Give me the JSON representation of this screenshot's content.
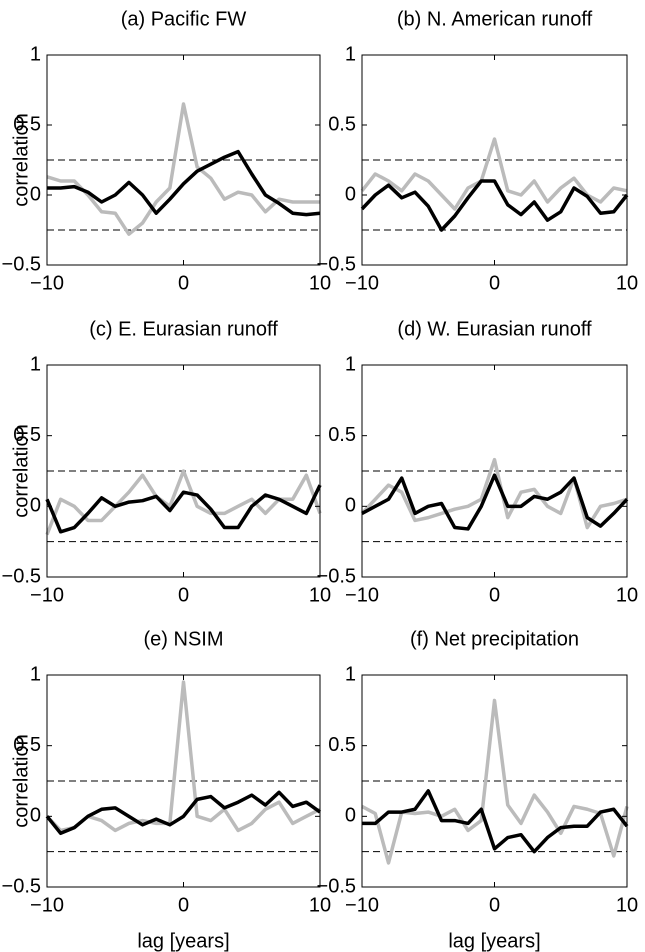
{
  "chart_data": [
    {
      "type": "line",
      "title": "(a) Pacific FW",
      "ylabel": "correlation",
      "x": [
        -10,
        -9,
        -8,
        -7,
        -6,
        -5,
        -4,
        -3,
        -2,
        -1,
        0,
        1,
        2,
        3,
        4,
        5,
        6,
        7,
        8,
        9,
        10
      ],
      "series": [
        {
          "color": "#bbbbbb",
          "values": [
            0.13,
            0.1,
            0.1,
            0.0,
            -0.12,
            -0.13,
            -0.28,
            -0.2,
            -0.05,
            0.05,
            0.65,
            0.2,
            0.12,
            -0.03,
            0.02,
            0.0,
            -0.12,
            -0.03,
            -0.05,
            -0.05,
            -0.05
          ]
        },
        {
          "color": "#000000",
          "values": [
            0.05,
            0.05,
            0.06,
            0.02,
            -0.05,
            0.0,
            0.09,
            0.0,
            -0.13,
            -0.03,
            0.08,
            0.17,
            0.22,
            0.27,
            0.31,
            0.15,
            0.0,
            -0.06,
            -0.13,
            -0.14,
            -0.13
          ]
        }
      ],
      "reference_lines": [
        0.25,
        -0.25
      ],
      "xlim": [
        -10,
        10
      ],
      "xticks": [
        {
          "value": -10,
          "label": "−10"
        },
        0,
        10
      ],
      "ylim": [
        -0.5,
        1
      ],
      "yticks": [
        {
          "value": -0.5,
          "label": "−0.5"
        },
        0,
        0.5,
        1
      ]
    },
    {
      "type": "line",
      "title": "(b) N. American runoff",
      "x": [
        -10,
        -9,
        -8,
        -7,
        -6,
        -5,
        -4,
        -3,
        -2,
        -1,
        0,
        1,
        2,
        3,
        4,
        5,
        6,
        7,
        8,
        9,
        10
      ],
      "series": [
        {
          "color": "#bbbbbb",
          "values": [
            0.03,
            0.15,
            0.1,
            0.03,
            0.15,
            0.1,
            0.0,
            -0.1,
            0.05,
            0.1,
            0.4,
            0.03,
            0.0,
            0.1,
            -0.05,
            0.05,
            0.12,
            0.0,
            -0.05,
            0.05,
            0.03
          ]
        },
        {
          "color": "#000000",
          "values": [
            -0.1,
            0.0,
            0.07,
            -0.02,
            0.02,
            -0.08,
            -0.25,
            -0.15,
            -0.02,
            0.1,
            0.1,
            -0.07,
            -0.14,
            -0.05,
            -0.18,
            -0.12,
            0.05,
            -0.01,
            -0.13,
            -0.12,
            0.0
          ]
        }
      ],
      "reference_lines": [
        0.25,
        -0.25
      ],
      "xlim": [
        -10,
        10
      ],
      "xticks": [
        {
          "value": -10,
          "label": "−10"
        },
        0,
        10
      ],
      "ylim": [
        -0.5,
        1
      ],
      "yticks": [
        {
          "value": -0.5,
          "label": "−0.5"
        },
        0,
        0.5,
        1
      ]
    },
    {
      "type": "line",
      "title": "(c) E. Eurasian runoff",
      "ylabel": "correlation",
      "x": [
        -10,
        -9,
        -8,
        -7,
        -6,
        -5,
        -4,
        -3,
        -2,
        -1,
        0,
        1,
        2,
        3,
        4,
        5,
        6,
        7,
        8,
        9,
        10
      ],
      "series": [
        {
          "color": "#bbbbbb",
          "values": [
            -0.2,
            0.05,
            0.0,
            -0.1,
            -0.1,
            0.0,
            0.1,
            0.22,
            0.07,
            0.0,
            0.25,
            0.0,
            -0.05,
            -0.05,
            0.0,
            0.05,
            -0.05,
            0.05,
            0.05,
            0.22,
            -0.05
          ]
        },
        {
          "color": "#000000",
          "values": [
            0.05,
            -0.18,
            -0.15,
            -0.05,
            0.06,
            0.0,
            0.03,
            0.04,
            0.07,
            -0.03,
            0.1,
            0.08,
            -0.02,
            -0.15,
            -0.15,
            0.0,
            0.08,
            0.05,
            0.0,
            -0.05,
            0.15
          ]
        }
      ],
      "reference_lines": [
        0.25,
        -0.25
      ],
      "xlim": [
        -10,
        10
      ],
      "xticks": [
        {
          "value": -10,
          "label": "−10"
        },
        0,
        10
      ],
      "ylim": [
        -0.5,
        1
      ],
      "yticks": [
        {
          "value": -0.5,
          "label": "−0.5"
        },
        0,
        0.5,
        1
      ]
    },
    {
      "type": "line",
      "title": "(d) W. Eurasian runoff",
      "x": [
        -10,
        -9,
        -8,
        -7,
        -6,
        -5,
        -4,
        -3,
        -2,
        -1,
        0,
        1,
        2,
        3,
        4,
        5,
        6,
        7,
        8,
        9,
        10
      ],
      "series": [
        {
          "color": "#bbbbbb",
          "values": [
            -0.05,
            0.05,
            0.15,
            0.1,
            -0.1,
            -0.08,
            -0.05,
            -0.02,
            0.0,
            0.05,
            0.33,
            -0.08,
            0.1,
            0.12,
            0.0,
            -0.05,
            0.2,
            -0.15,
            0.0,
            0.02,
            0.05
          ]
        },
        {
          "color": "#000000",
          "values": [
            -0.05,
            0.0,
            0.05,
            0.2,
            -0.05,
            0.0,
            0.02,
            -0.15,
            -0.16,
            0.0,
            0.22,
            0.0,
            0.0,
            0.07,
            0.05,
            0.1,
            0.2,
            -0.08,
            -0.14,
            -0.05,
            0.05
          ]
        }
      ],
      "reference_lines": [
        0.25,
        -0.25
      ],
      "xlim": [
        -10,
        10
      ],
      "xticks": [
        {
          "value": -10,
          "label": "−10"
        },
        0,
        10
      ],
      "ylim": [
        -0.5,
        1
      ],
      "yticks": [
        {
          "value": -0.5,
          "label": "−0.5"
        },
        0,
        0.5,
        1
      ]
    },
    {
      "type": "line",
      "title": "(e) NSIM",
      "ylabel": "correlation",
      "xlabel": "lag [years]",
      "x": [
        -10,
        -9,
        -8,
        -7,
        -6,
        -5,
        -4,
        -3,
        -2,
        -1,
        0,
        1,
        2,
        3,
        4,
        5,
        6,
        7,
        8,
        9,
        10
      ],
      "series": [
        {
          "color": "#bbbbbb",
          "values": [
            0.0,
            -0.1,
            -0.08,
            0.0,
            -0.03,
            -0.1,
            -0.05,
            -0.03,
            -0.05,
            -0.05,
            0.95,
            0.0,
            -0.03,
            0.05,
            -0.1,
            -0.05,
            0.05,
            0.1,
            -0.05,
            0.0,
            0.05
          ]
        },
        {
          "color": "#000000",
          "values": [
            0.0,
            -0.12,
            -0.08,
            0.0,
            0.05,
            0.06,
            0.0,
            -0.06,
            -0.02,
            -0.06,
            0.0,
            0.12,
            0.14,
            0.06,
            0.1,
            0.15,
            0.08,
            0.17,
            0.07,
            0.1,
            0.03
          ]
        }
      ],
      "reference_lines": [
        0.25,
        -0.25
      ],
      "xlim": [
        -10,
        10
      ],
      "xticks": [
        {
          "value": -10,
          "label": "−10"
        },
        0,
        10
      ],
      "ylim": [
        -0.5,
        1
      ],
      "yticks": [
        {
          "value": -0.5,
          "label": "−0.5"
        },
        0,
        0.5,
        1
      ]
    },
    {
      "type": "line",
      "title": "(f) Net precipitation",
      "xlabel": "lag [years]",
      "x": [
        -10,
        -9,
        -8,
        -7,
        -6,
        -5,
        -4,
        -3,
        -2,
        -1,
        0,
        1,
        2,
        3,
        4,
        5,
        6,
        7,
        8,
        9,
        10
      ],
      "series": [
        {
          "color": "#bbbbbb",
          "values": [
            0.07,
            0.02,
            -0.33,
            0.03,
            0.02,
            0.03,
            0.0,
            0.05,
            -0.1,
            -0.03,
            0.82,
            0.08,
            -0.05,
            0.15,
            0.03,
            -0.12,
            0.07,
            0.05,
            0.02,
            -0.28,
            0.07
          ]
        },
        {
          "color": "#000000",
          "values": [
            -0.05,
            -0.05,
            0.03,
            0.03,
            0.05,
            0.18,
            -0.03,
            -0.03,
            -0.05,
            0.05,
            -0.23,
            -0.15,
            -0.13,
            -0.25,
            -0.15,
            -0.08,
            -0.07,
            -0.07,
            0.03,
            0.05,
            -0.07
          ]
        }
      ],
      "reference_lines": [
        0.25,
        -0.25
      ],
      "xlim": [
        -10,
        10
      ],
      "xticks": [
        {
          "value": -10,
          "label": "−10"
        },
        0,
        10
      ],
      "ylim": [
        -0.5,
        1
      ],
      "yticks": [
        {
          "value": -0.5,
          "label": "−0.5"
        },
        0,
        0.5,
        1
      ]
    }
  ]
}
